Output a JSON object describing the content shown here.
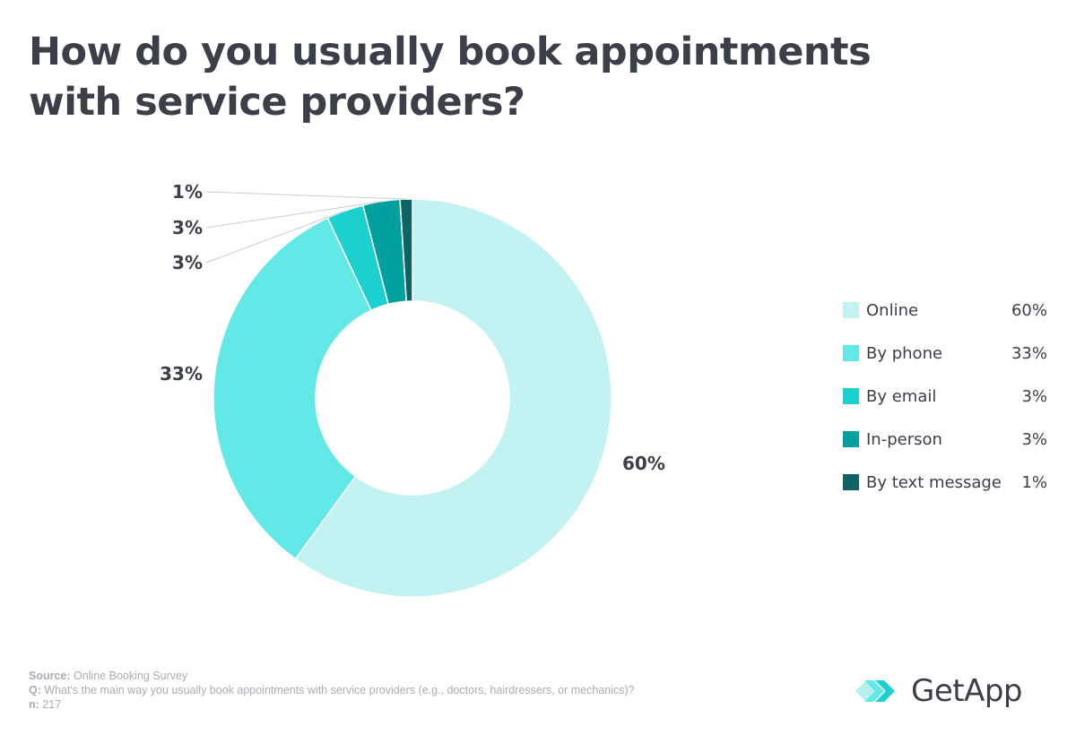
{
  "title_lines": [
    "How do you usually book appointments",
    "with service providers?"
  ],
  "chart_data": {
    "type": "pie",
    "variant": "donut",
    "title": "How do you usually book appointments with service providers?",
    "categories": [
      "Online",
      "By phone",
      "By email",
      "In-person",
      "By text message"
    ],
    "values": [
      60,
      33,
      3,
      3,
      1
    ],
    "labels": [
      "60%",
      "33%",
      "3%",
      "3%",
      "1%"
    ],
    "colors": [
      "#c2f2f1",
      "#62e8e6",
      "#1bd0cf",
      "#00a09e",
      "#0e6464"
    ],
    "legend_position": "right"
  },
  "footer": {
    "source_label": "Source:",
    "source_value": "Online Booking Survey",
    "q_label": "Q:",
    "q_value": "What's the main way you usually book appointments with service providers (e.g., doctors, hairdressers, or mechanics)?",
    "n_label": "n:",
    "n_value": "217"
  },
  "logo": {
    "text": "GetApp",
    "icon": "getapp-chevrons-icon"
  }
}
